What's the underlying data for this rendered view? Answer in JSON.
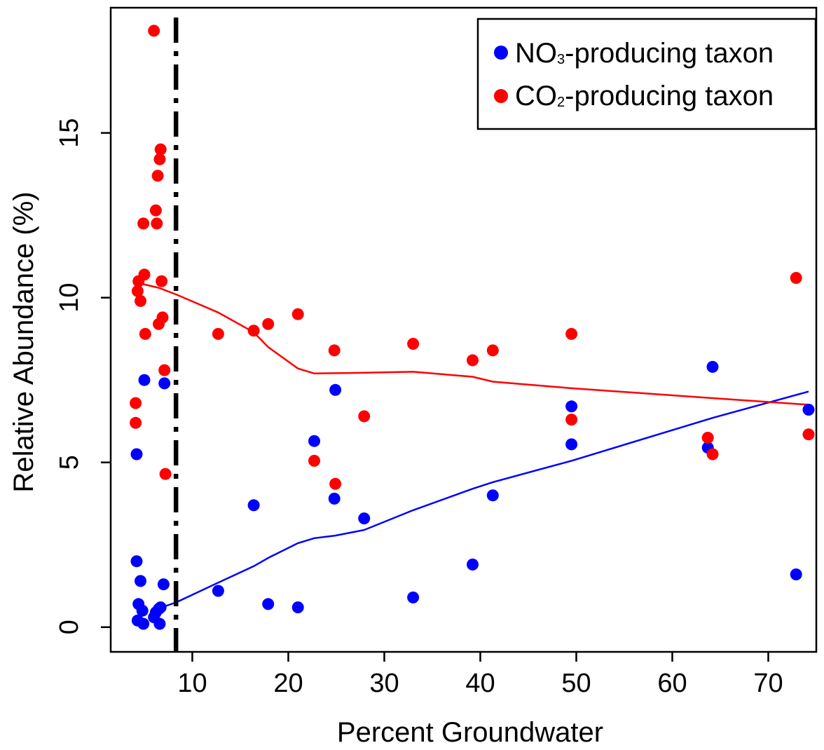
{
  "chart_data": {
    "type": "scatter",
    "xlabel": "Percent Groundwater",
    "ylabel": "Relative Abundance (%)",
    "xlim": [
      1.5,
      75
    ],
    "ylim": [
      -0.75,
      18.8
    ],
    "x_ticks": [
      10,
      20,
      30,
      40,
      50,
      60,
      70
    ],
    "y_ticks": [
      0,
      5,
      10,
      15
    ],
    "threshold_line_x": 8.3,
    "legend": {
      "placement": "top-right",
      "entries": [
        {
          "prefix": "NO",
          "subscript": "3",
          "suffix": "-producing taxon",
          "color": "#0000ff"
        },
        {
          "prefix": "CO",
          "subscript": "2",
          "suffix": "-producing taxon",
          "color": "#ff0000"
        }
      ]
    },
    "series": [
      {
        "color": "#0000ff",
        "points": [
          [
            4.2,
            5.25
          ],
          [
            4.2,
            2.0
          ],
          [
            4.3,
            0.2
          ],
          [
            4.4,
            0.7
          ],
          [
            4.6,
            1.4
          ],
          [
            4.8,
            0.5
          ],
          [
            4.9,
            0.1
          ],
          [
            5.0,
            7.5
          ],
          [
            6.0,
            0.3
          ],
          [
            6.2,
            0.45
          ],
          [
            6.5,
            0.55
          ],
          [
            6.6,
            0.1
          ],
          [
            6.7,
            0.6
          ],
          [
            7.0,
            1.3
          ],
          [
            7.1,
            7.4
          ],
          [
            12.7,
            1.1
          ],
          [
            16.4,
            3.7
          ],
          [
            17.9,
            0.7
          ],
          [
            21.0,
            0.6
          ],
          [
            22.7,
            5.65
          ],
          [
            24.8,
            3.9
          ],
          [
            24.9,
            7.2
          ],
          [
            27.9,
            3.3
          ],
          [
            33.0,
            0.9
          ],
          [
            39.2,
            1.9
          ],
          [
            41.3,
            4.0
          ],
          [
            49.5,
            6.7
          ],
          [
            49.5,
            5.55
          ],
          [
            63.7,
            5.45
          ],
          [
            64.2,
            7.9
          ],
          [
            72.9,
            1.6
          ],
          [
            74.2,
            6.6
          ]
        ],
        "trend": [
          [
            6.8,
            0.6
          ],
          [
            8.3,
            0.75
          ],
          [
            10.5,
            1.05
          ],
          [
            12.7,
            1.35
          ],
          [
            16.4,
            1.85
          ],
          [
            17.9,
            2.1
          ],
          [
            21.0,
            2.55
          ],
          [
            22.7,
            2.7
          ],
          [
            24.9,
            2.78
          ],
          [
            27.9,
            2.95
          ],
          [
            33.0,
            3.55
          ],
          [
            39.2,
            4.2
          ],
          [
            41.3,
            4.4
          ],
          [
            49.5,
            5.05
          ],
          [
            64.2,
            6.35
          ],
          [
            74.2,
            7.15
          ]
        ]
      },
      {
        "color": "#ff0000",
        "points": [
          [
            4.1,
            6.8
          ],
          [
            4.1,
            6.2
          ],
          [
            4.3,
            10.2
          ],
          [
            4.4,
            10.5
          ],
          [
            4.6,
            9.9
          ],
          [
            4.9,
            12.25
          ],
          [
            5.0,
            10.7
          ],
          [
            5.1,
            8.9
          ],
          [
            6.0,
            18.1
          ],
          [
            6.2,
            12.65
          ],
          [
            6.3,
            12.25
          ],
          [
            6.4,
            13.7
          ],
          [
            6.5,
            9.2
          ],
          [
            6.6,
            14.2
          ],
          [
            6.7,
            14.5
          ],
          [
            6.8,
            10.5
          ],
          [
            6.9,
            9.4
          ],
          [
            7.1,
            7.8
          ],
          [
            7.2,
            4.65
          ],
          [
            12.7,
            8.9
          ],
          [
            16.4,
            9.0
          ],
          [
            17.9,
            9.2
          ],
          [
            21.0,
            9.5
          ],
          [
            22.7,
            5.05
          ],
          [
            24.8,
            8.4
          ],
          [
            24.9,
            4.35
          ],
          [
            27.9,
            6.4
          ],
          [
            33.0,
            8.6
          ],
          [
            39.2,
            8.1
          ],
          [
            41.3,
            8.4
          ],
          [
            49.5,
            8.9
          ],
          [
            49.5,
            6.3
          ],
          [
            63.7,
            5.75
          ],
          [
            64.2,
            5.25
          ],
          [
            72.9,
            10.6
          ],
          [
            74.2,
            5.85
          ]
        ],
        "trend": [
          [
            4.3,
            10.45
          ],
          [
            6.5,
            10.3
          ],
          [
            8.3,
            10.1
          ],
          [
            12.7,
            9.55
          ],
          [
            16.4,
            8.95
          ],
          [
            17.9,
            8.5
          ],
          [
            21.0,
            7.85
          ],
          [
            22.7,
            7.7
          ],
          [
            27.9,
            7.72
          ],
          [
            33.0,
            7.75
          ],
          [
            39.2,
            7.6
          ],
          [
            41.3,
            7.45
          ],
          [
            49.5,
            7.25
          ],
          [
            64.2,
            6.95
          ],
          [
            74.2,
            6.75
          ]
        ]
      }
    ]
  }
}
